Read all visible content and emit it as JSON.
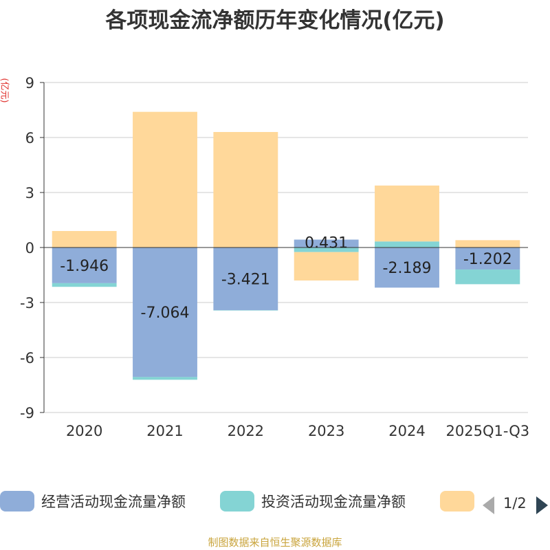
{
  "chart_data": {
    "type": "bar",
    "title": "各项现金流净额历年变化情况(亿元)",
    "ylabel": "(亿元)",
    "ylim": [
      -9,
      9
    ],
    "yticks": [
      9,
      6,
      3,
      0,
      -3,
      -6,
      -9
    ],
    "grid": true,
    "categories": [
      "2020",
      "2021",
      "2022",
      "2023",
      "2024",
      "2025Q1-Q3"
    ],
    "series": [
      {
        "name": "经营活动现金流量净额",
        "color": "#8fadd9",
        "values": [
          -1.946,
          -7.064,
          -3.421,
          0.431,
          -2.189,
          -1.202
        ]
      },
      {
        "name": "投资活动现金流量净额",
        "color": "#84d4d4",
        "values": [
          -0.2,
          -0.15,
          -0.02,
          -0.25,
          0.33,
          -0.8
        ]
      },
      {
        "name": "",
        "color": "#ffd89a",
        "values": [
          0.9,
          7.4,
          6.3,
          -1.55,
          3.05,
          0.4
        ]
      }
    ],
    "data_labels": [
      "-1.946",
      "-7.064",
      "-3.421",
      "0.431",
      "-2.189",
      "-1.202"
    ],
    "legend_position": "bottom",
    "legend_page": "1/2"
  },
  "source": "制图数据来自恒生聚源数据库"
}
